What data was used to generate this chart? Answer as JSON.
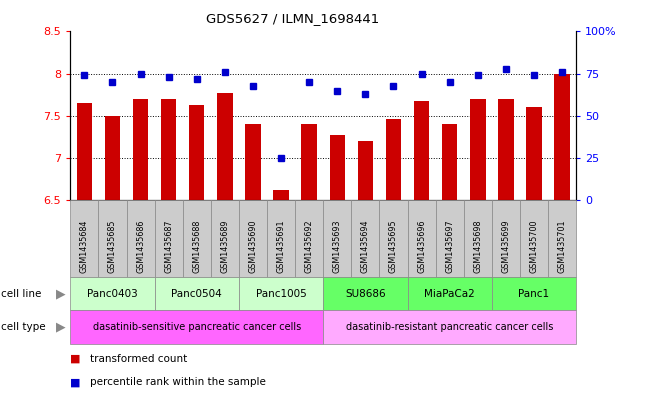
{
  "title": "GDS5627 / ILMN_1698441",
  "samples": [
    "GSM1435684",
    "GSM1435685",
    "GSM1435686",
    "GSM1435687",
    "GSM1435688",
    "GSM1435689",
    "GSM1435690",
    "GSM1435691",
    "GSM1435692",
    "GSM1435693",
    "GSM1435694",
    "GSM1435695",
    "GSM1435696",
    "GSM1435697",
    "GSM1435698",
    "GSM1435699",
    "GSM1435700",
    "GSM1435701"
  ],
  "bar_values": [
    7.65,
    7.5,
    7.7,
    7.7,
    7.63,
    7.77,
    7.4,
    6.62,
    7.4,
    7.28,
    7.2,
    7.46,
    7.68,
    7.4,
    7.7,
    7.7,
    7.6,
    8.0
  ],
  "percentile_values": [
    74,
    70,
    75,
    73,
    72,
    76,
    68,
    25,
    70,
    65,
    63,
    68,
    75,
    70,
    74,
    78,
    74,
    76
  ],
  "bar_color": "#cc0000",
  "percentile_color": "#0000cc",
  "ylim_left": [
    6.5,
    8.5
  ],
  "ylim_right": [
    0,
    100
  ],
  "yticks_left": [
    6.5,
    7.0,
    7.5,
    8.0,
    8.5
  ],
  "ytick_labels_left": [
    "6.5",
    "7",
    "7.5",
    "8",
    "8.5"
  ],
  "yticks_right": [
    0,
    25,
    50,
    75,
    100
  ],
  "ytick_labels_right": [
    "0",
    "25",
    "50",
    "75",
    "100%"
  ],
  "grid_lines": [
    7.0,
    7.5,
    8.0
  ],
  "cell_lines": [
    {
      "label": "Panc0403",
      "start": 0,
      "end": 3,
      "color": "#ccffcc"
    },
    {
      "label": "Panc0504",
      "start": 3,
      "end": 6,
      "color": "#ccffcc"
    },
    {
      "label": "Panc1005",
      "start": 6,
      "end": 9,
      "color": "#ccffcc"
    },
    {
      "label": "SU8686",
      "start": 9,
      "end": 12,
      "color": "#66ff66"
    },
    {
      "label": "MiaPaCa2",
      "start": 12,
      "end": 15,
      "color": "#66ff66"
    },
    {
      "label": "Panc1",
      "start": 15,
      "end": 18,
      "color": "#66ff66"
    }
  ],
  "cell_types": [
    {
      "label": "dasatinib-sensitive pancreatic cancer cells",
      "start": 0,
      "end": 9,
      "color": "#ff66ff"
    },
    {
      "label": "dasatinib-resistant pancreatic cancer cells",
      "start": 9,
      "end": 18,
      "color": "#ffaaff"
    }
  ],
  "cell_line_label": "cell line",
  "cell_type_label": "cell type",
  "legend_bar": "transformed count",
  "legend_pct": "percentile rank within the sample",
  "gsm_row_color": "#cccccc",
  "bg_color": "white"
}
